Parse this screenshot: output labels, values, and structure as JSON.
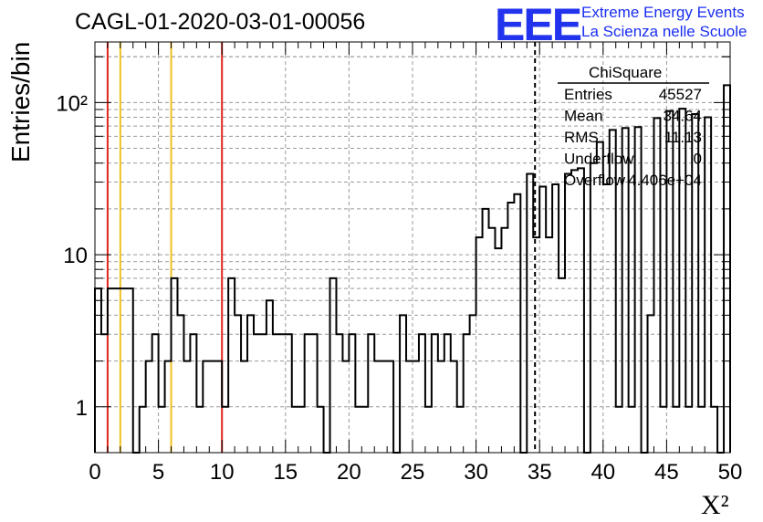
{
  "title": "CAGL-01-2020-03-01-00056",
  "logo": {
    "mark": "EEE",
    "line1": "Extreme Energy Events",
    "line2": "La Scienza nelle Scuole"
  },
  "stats_box": {
    "title": "ChiSquare",
    "rows": [
      {
        "label": "Entries",
        "value": "45527"
      },
      {
        "label": "Mean",
        "value": "34.64"
      },
      {
        "label": "RMS",
        "value": "11.13"
      },
      {
        "label": "Underflow",
        "value": "0"
      },
      {
        "label": "Overflow",
        "value": "4.406e+04"
      }
    ]
  },
  "chart_data": {
    "type": "bar",
    "style": "step histogram",
    "ylabel": "Entries/bin",
    "xlabel": "X²",
    "xlim": [
      0,
      50
    ],
    "ylim": [
      0.5,
      250
    ],
    "yscale": "log",
    "grid": true,
    "bin_width": 0.5,
    "x_ticks": [
      "0",
      "5",
      "10",
      "15",
      "20",
      "25",
      "30",
      "35",
      "40",
      "45",
      "50"
    ],
    "y_ticks": [
      "1",
      "10",
      "10²"
    ],
    "counts": [
      6,
      3,
      6,
      6,
      6,
      6,
      0,
      1,
      2,
      3,
      1,
      2,
      7,
      4,
      2,
      3,
      1,
      2,
      2,
      2,
      1,
      7,
      4,
      2,
      4,
      3,
      3,
      5,
      3,
      3,
      3,
      1,
      1,
      3,
      3,
      1,
      0,
      7,
      3,
      2,
      3,
      1,
      1,
      3,
      2,
      2,
      2,
      0,
      4,
      2,
      2,
      3,
      1,
      3,
      2,
      3,
      2,
      1,
      3,
      4,
      13,
      20,
      15,
      11,
      15,
      22,
      25,
      0,
      34,
      13,
      28,
      13,
      29,
      7,
      34,
      36,
      37,
      0,
      40,
      55,
      29,
      66,
      1,
      68,
      1,
      69,
      0,
      4,
      79,
      1,
      88,
      1,
      91,
      1,
      84,
      1,
      80,
      1,
      0,
      130
    ],
    "vertical_lines": [
      {
        "x": 1,
        "color": "#e0241a"
      },
      {
        "x": 2,
        "color": "#f0c020"
      },
      {
        "x": 6,
        "color": "#f0c020"
      },
      {
        "x": 10,
        "color": "#e0241a"
      },
      {
        "x": 34.64,
        "color": "#000000",
        "dashed": true
      }
    ]
  }
}
